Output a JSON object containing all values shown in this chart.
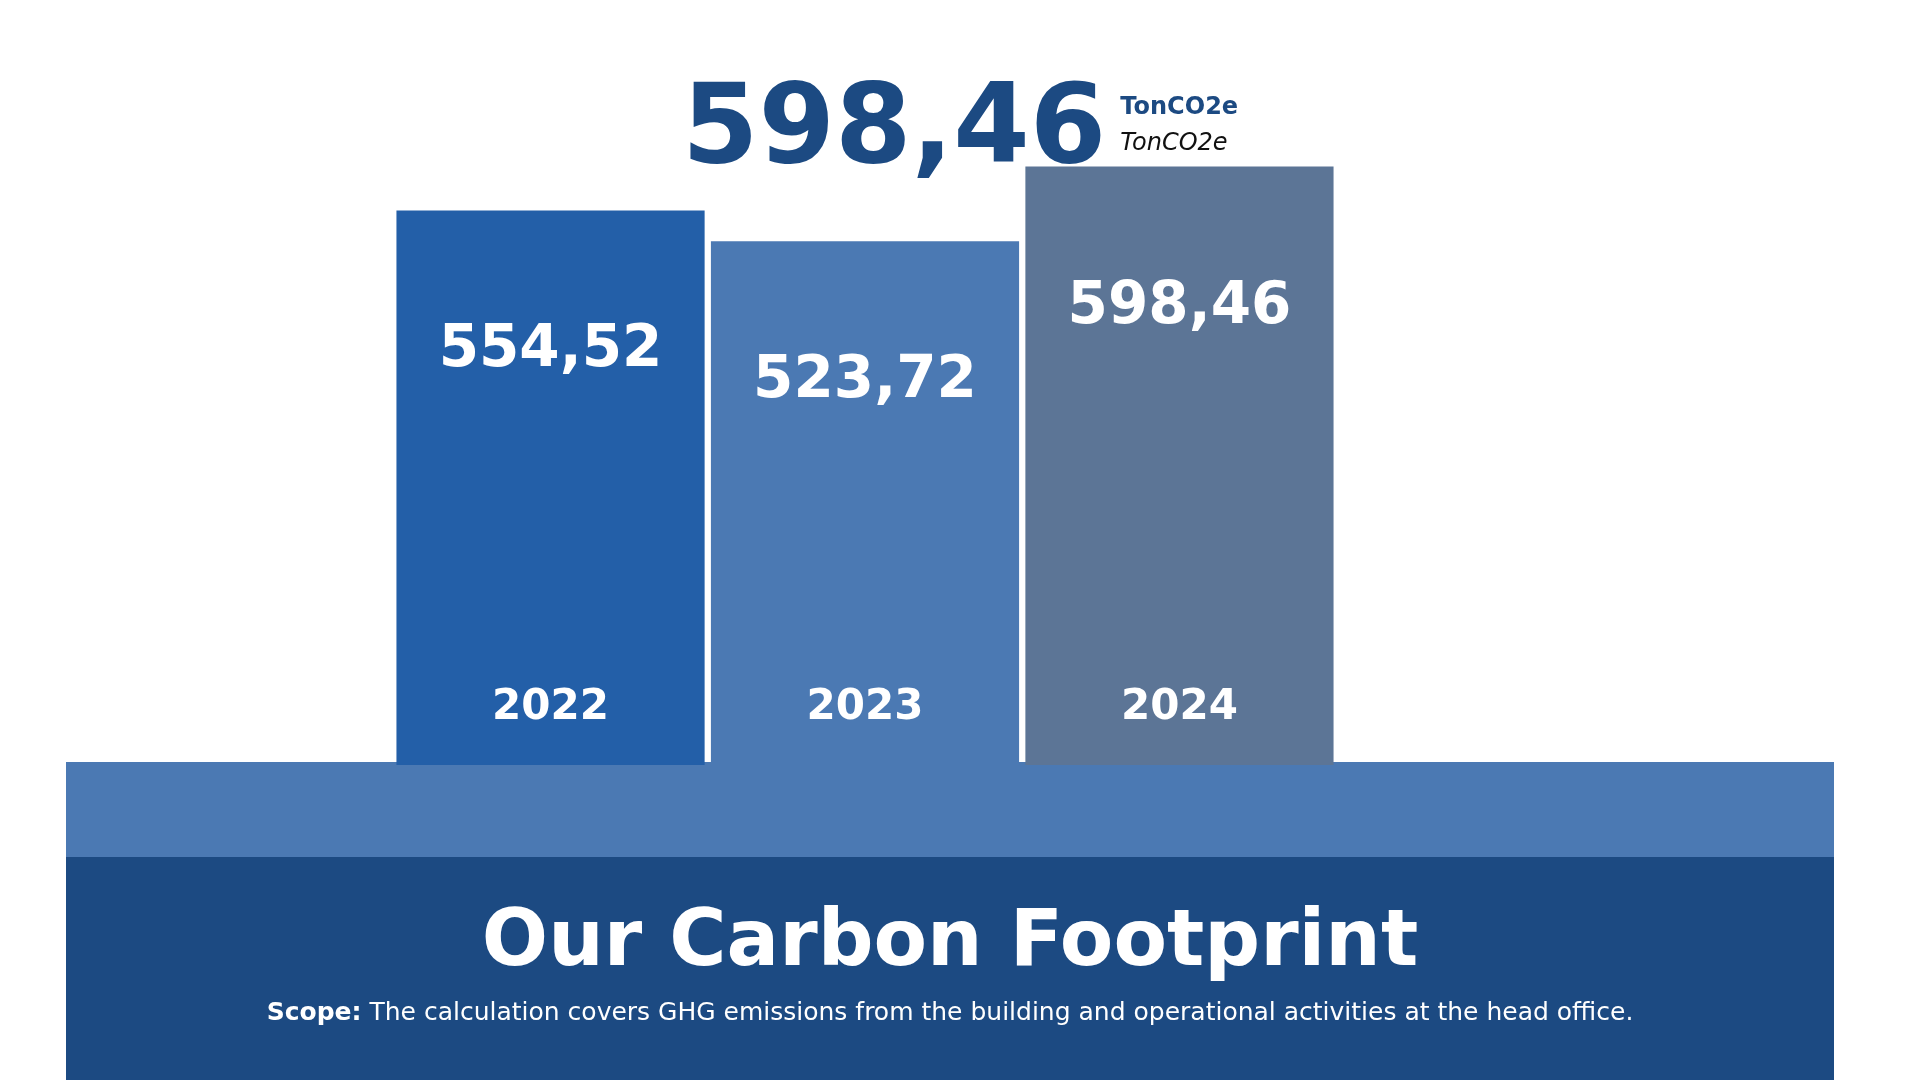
{
  "chart_data": {
    "type": "bar",
    "title": "Our Carbon Footprint",
    "categories": [
      "2022",
      "2023",
      "2024"
    ],
    "values": [
      554.52,
      523.72,
      598.46
    ],
    "colors": [
      "#235fa8",
      "#4b79b3",
      "#5c7596"
    ],
    "value_labels": [
      "554,52",
      "523,72",
      "598,46"
    ],
    "annotations": [
      "598,46",
      "TonCO2e",
      "TonCO2e",
      "Scope: The calculation covers GHG emissions from the building and operational activities at the head office."
    ]
  }
}
